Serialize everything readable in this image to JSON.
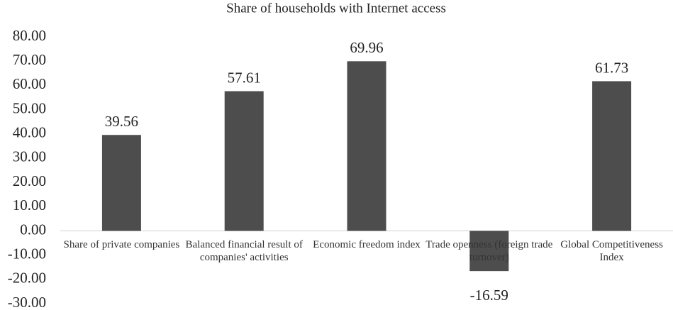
{
  "chart_data": {
    "type": "bar",
    "title": "Share of households with Internet access",
    "categories": [
      "Share of private companies",
      "Balanced financial result of companies' activities",
      "Economic freedom index",
      "Trade openness (foreign trade turnover)",
      "Global Competitiveness Index"
    ],
    "values": [
      39.56,
      57.61,
      69.96,
      -16.59,
      61.73
    ],
    "color": "#4d4d4d",
    "ylim": [
      -30,
      80
    ],
    "yticks": [
      {
        "value": -30,
        "label": "-30.00"
      },
      {
        "value": -20,
        "label": "-20.00"
      },
      {
        "value": -10,
        "label": "-10.00"
      },
      {
        "value": 0,
        "label": "0.00"
      },
      {
        "value": 10,
        "label": "10.00"
      },
      {
        "value": 20,
        "label": "20.00"
      },
      {
        "value": 30,
        "label": "30.00"
      },
      {
        "value": 40,
        "label": "40.00"
      },
      {
        "value": 50,
        "label": "50.00"
      },
      {
        "value": 60,
        "label": "60.00"
      },
      {
        "value": 70,
        "label": "70.00"
      },
      {
        "value": 80,
        "label": "80.00"
      }
    ],
    "grid": false
  }
}
